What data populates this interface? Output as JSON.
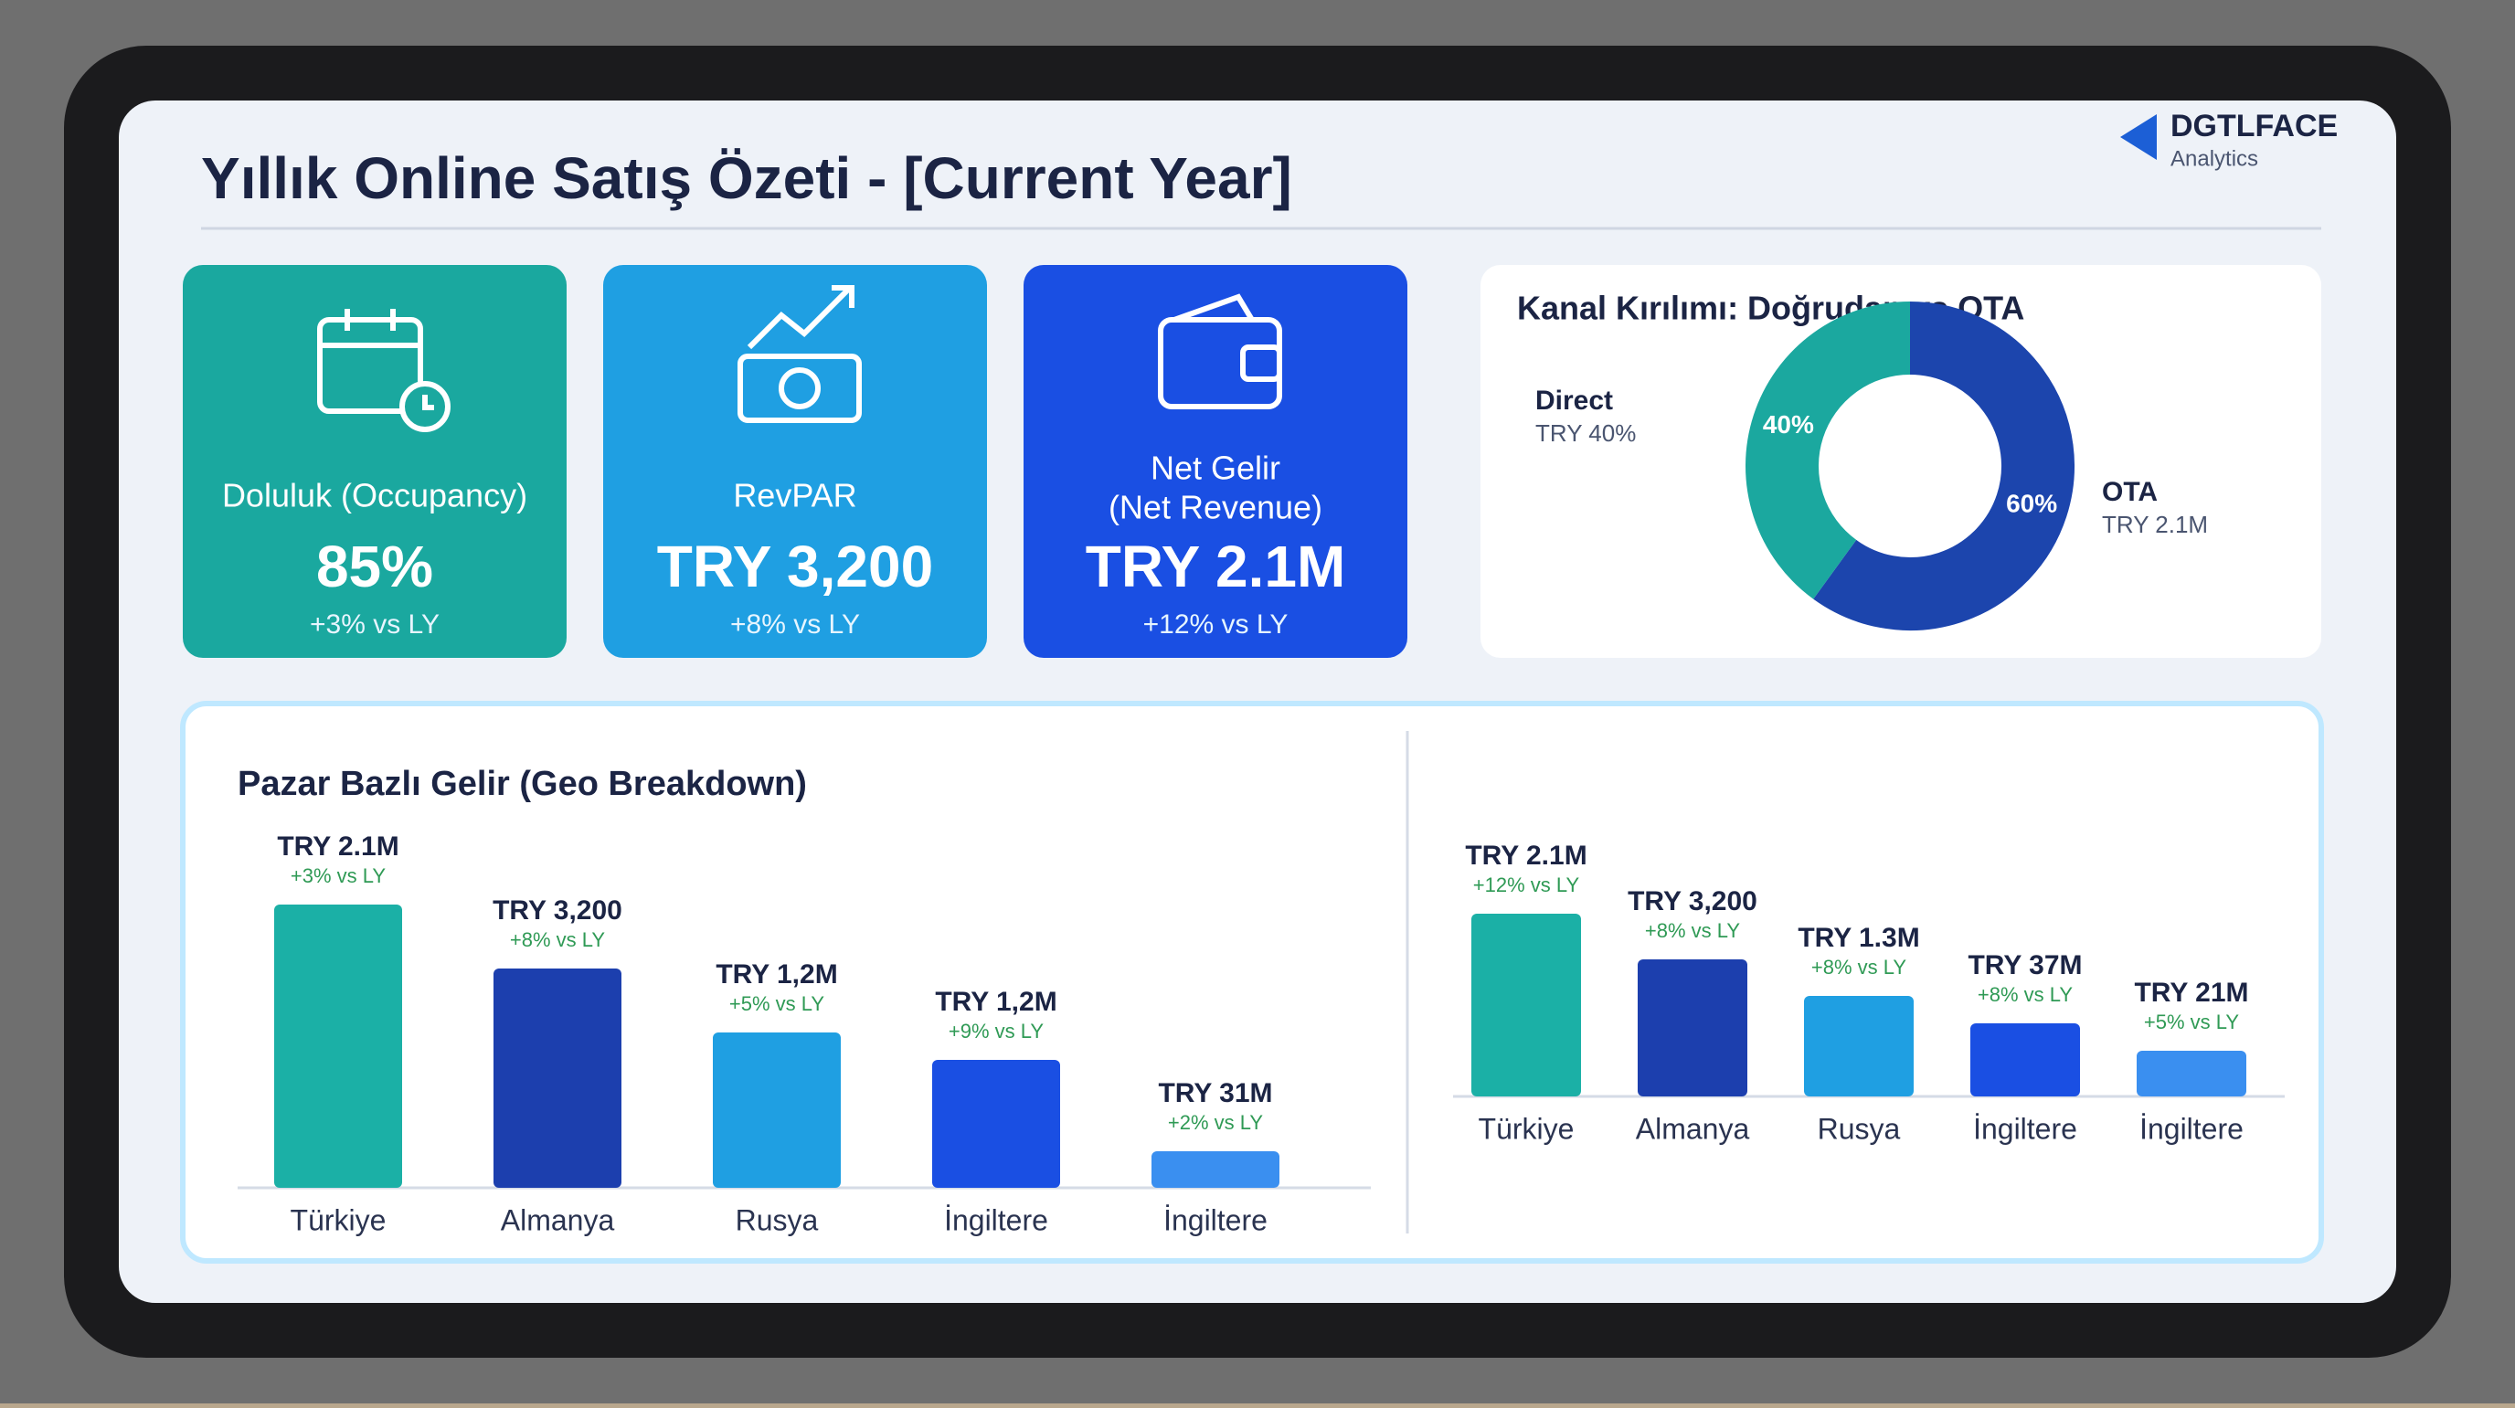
{
  "header": {
    "title": "Yıllık Online Satış Özeti - [Current Year]",
    "logo": "DGTLFACE",
    "logo_sub": "Analytics"
  },
  "kpis": [
    {
      "label": "Doluluk (Occupancy)",
      "value": "85%",
      "change": "+3% vs LY"
    },
    {
      "label": "RevPAR",
      "value": "TRY 3,200",
      "change": "+8% vs LY"
    },
    {
      "label": "Net Gelir",
      "sublabel": "(Net Revenue)",
      "value": "TRY 2.1M",
      "change": "+12% vs LY"
    }
  ],
  "channel": {
    "title": "Kanal Kırılımı: Doğrudan vs OTA",
    "segments": [
      {
        "name": "Direct",
        "amount": "TRY 40%",
        "value": 40,
        "value_label": "40%",
        "color": "#1ba89f"
      },
      {
        "name": "OTA",
        "amount": "TRY 2.1M",
        "value": 60,
        "value_label": "60%",
        "color": "#1c45ad"
      }
    ]
  },
  "geo_left": {
    "title": "Pazar Bazlı Gelir (Geo Breakdown)",
    "bars": [
      {
        "amount": "TRY 2.1M",
        "change": "+3% vs LY",
        "label": "Türkiye"
      },
      {
        "amount": "TRY 3,200",
        "change": "+8% vs LY",
        "label": "Almanya"
      },
      {
        "amount": "TRY 1,2M",
        "change": "+5% vs LY",
        "label": "Rusya"
      },
      {
        "amount": "TRY 1,2M",
        "change": "+9% vs LY",
        "label": "İngiltere"
      },
      {
        "amount": "TRY 31M",
        "change": "+2% vs LY",
        "label": "İngiltere"
      }
    ]
  },
  "geo_right": {
    "bars": [
      {
        "amount": "TRY 2.1M",
        "change": "+12% vs LY",
        "label": "Türkiye"
      },
      {
        "amount": "TRY 3,200",
        "change": "+8% vs LY",
        "label": "Almanya"
      },
      {
        "amount": "TRY 1.3M",
        "change": "+8% vs LY",
        "label": "Rusya"
      },
      {
        "amount": "TRY 37M",
        "change": "+8% vs LY",
        "label": "İngiltere"
      },
      {
        "amount": "TRY 21M",
        "change": "+5% vs LY",
        "label": "İngiltere"
      }
    ]
  }
}
